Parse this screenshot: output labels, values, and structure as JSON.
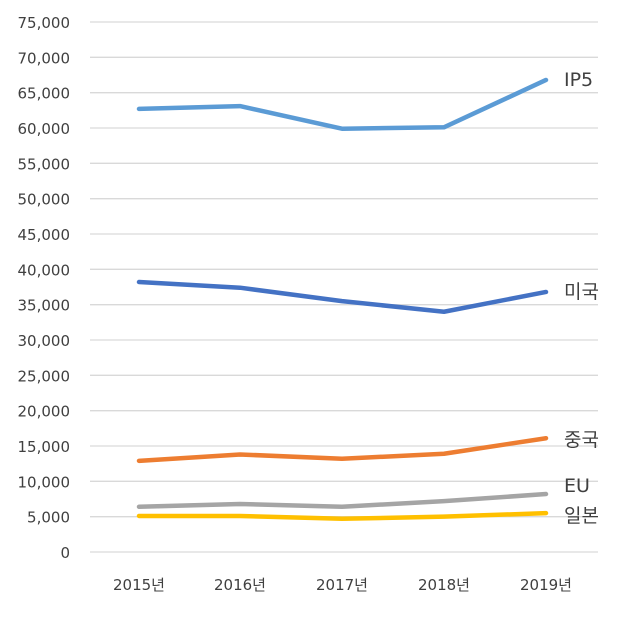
{
  "chart_data": {
    "type": "line",
    "title": "",
    "xlabel": "",
    "ylabel": "",
    "categories": [
      "2015년",
      "2016년",
      "2017년",
      "2018년",
      "2019년"
    ],
    "ylim": [
      0,
      75000
    ],
    "yticks": [
      0,
      5000,
      10000,
      15000,
      20000,
      25000,
      30000,
      35000,
      40000,
      45000,
      50000,
      55000,
      60000,
      65000,
      70000,
      75000
    ],
    "ytick_labels": [
      "0",
      "5,000",
      "10,000",
      "15,000",
      "20,000",
      "25,000",
      "30,000",
      "35,000",
      "40,000",
      "45,000",
      "50,000",
      "55,000",
      "60,000",
      "65,000",
      "70,000",
      "75,000"
    ],
    "grid": true,
    "legend": "end-of-line labels",
    "series": [
      {
        "name": "IP5",
        "color": "#5B9BD5",
        "values": [
          62700,
          63100,
          59900,
          60100,
          66800
        ]
      },
      {
        "name": "미국",
        "color": "#4472C4",
        "values": [
          38200,
          37400,
          35500,
          34000,
          36800
        ]
      },
      {
        "name": "중국",
        "color": "#ED7D31",
        "values": [
          12900,
          13800,
          13200,
          13900,
          16100
        ]
      },
      {
        "name": "EU",
        "color": "#A5A5A5",
        "values": [
          6400,
          6800,
          6400,
          7200,
          8200
        ]
      },
      {
        "name": "일본",
        "color": "#FFC000",
        "values": [
          5100,
          5100,
          4700,
          5000,
          5500
        ]
      }
    ]
  }
}
